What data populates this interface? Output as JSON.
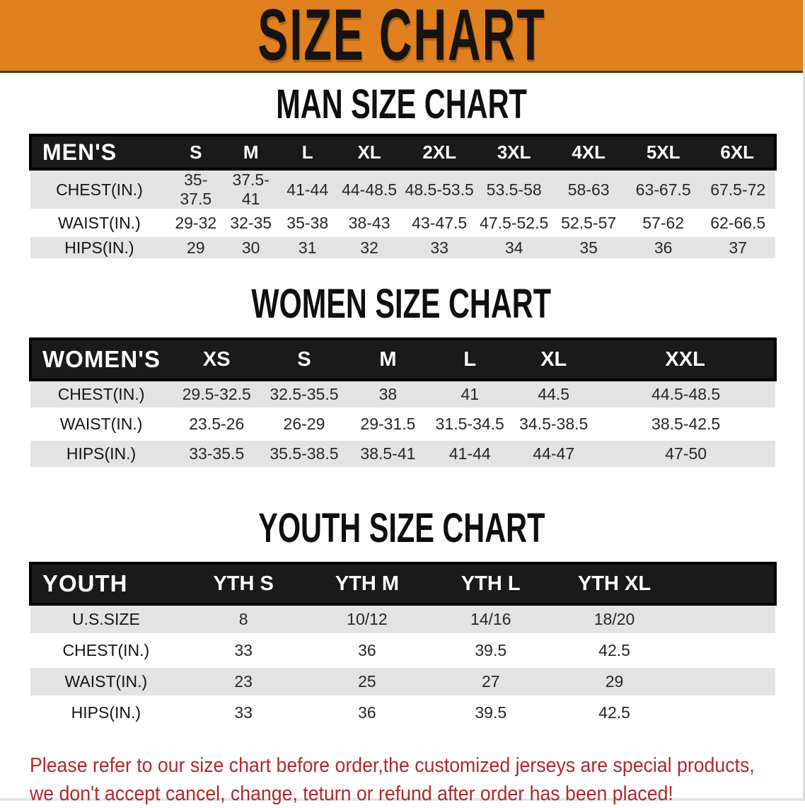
{
  "banner": {
    "title": "SIZE CHART",
    "bg_color": "#E0801F"
  },
  "sections": {
    "men": {
      "title": "MAN SIZE CHART",
      "table": {
        "corner_label": "MEN'S",
        "columns": [
          "S",
          "M",
          "L",
          "XL",
          "2XL",
          "3XL",
          "4XL",
          "5XL",
          "6XL"
        ],
        "rows": [
          {
            "label": "CHEST(IN.)",
            "cells": [
              "35-37.5",
              "37.5-41",
              "41-44",
              "44-48.5",
              "48.5-53.5",
              "53.5-58",
              "58-63",
              "63-67.5",
              "67.5-72"
            ]
          },
          {
            "label": "WAIST(IN.)",
            "cells": [
              "29-32",
              "32-35",
              "35-38",
              "38-43",
              "43-47.5",
              "47.5-52.5",
              "52.5-57",
              "57-62",
              "62-66.5"
            ]
          },
          {
            "label": "HIPS(IN.)",
            "cells": [
              "29",
              "30",
              "31",
              "32",
              "33",
              "34",
              "35",
              "36",
              "37"
            ]
          }
        ]
      }
    },
    "women": {
      "title": "WOMEN SIZE CHART",
      "table": {
        "corner_label": "WOMEN'S",
        "columns": [
          "XS",
          "S",
          "M",
          "L",
          "XL",
          "XXL"
        ],
        "rows": [
          {
            "label": "CHEST(IN.)",
            "cells": [
              "29.5-32.5",
              "32.5-35.5",
              "38",
              "41",
              "44.5",
              "44.5-48.5"
            ]
          },
          {
            "label": "WAIST(IN.)",
            "cells": [
              "23.5-26",
              "26-29",
              "29-31.5",
              "31.5-34.5",
              "34.5-38.5",
              "38.5-42.5"
            ]
          },
          {
            "label": "HIPS(IN.)",
            "cells": [
              "33-35.5",
              "35.5-38.5",
              "38.5-41",
              "41-44",
              "44-47",
              "47-50"
            ]
          }
        ]
      }
    },
    "youth": {
      "title": "YOUTH SIZE CHART",
      "table": {
        "corner_label": "YOUTH",
        "columns": [
          "YTH S",
          "YTH M",
          "YTH L",
          "YTH XL"
        ],
        "rows": [
          {
            "label": "U.S.SIZE",
            "cells": [
              "8",
              "10/12",
              "14/16",
              "18/20"
            ]
          },
          {
            "label": "CHEST(IN.)",
            "cells": [
              "33",
              "36",
              "39.5",
              "42.5"
            ]
          },
          {
            "label": "WAIST(IN.)",
            "cells": [
              "23",
              "25",
              "27",
              "29"
            ]
          },
          {
            "label": "HIPS(IN.)",
            "cells": [
              "33",
              "36",
              "39.5",
              "42.5"
            ]
          }
        ]
      }
    }
  },
  "footer": {
    "line1": "Please refer to our size chart before order,the customized jerseys are special products,",
    "line2": "we don't accept cancel, change, teturn or refund after order has been placed!",
    "color": "#B2292A"
  }
}
